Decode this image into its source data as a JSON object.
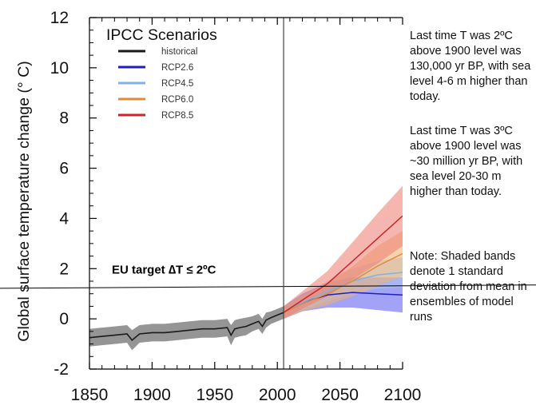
{
  "chart_data": {
    "type": "line",
    "title": "IPCC Scenarios",
    "ylabel": "Global surface temperature change (° C)",
    "xlabel": "",
    "xlim": [
      1850,
      2100
    ],
    "ylim": [
      -2,
      12
    ],
    "x_ticks": [
      "1850",
      "1900",
      "1950",
      "2000",
      "2050",
      "2100"
    ],
    "y_ticks": [
      "-2",
      "0",
      "2",
      "4",
      "6",
      "8",
      "10",
      "12"
    ],
    "grid": false,
    "legend_position": "top-left",
    "series": [
      {
        "name": "historical",
        "color": "#1a1a1a",
        "band_color": "#8a8a8a",
        "x": [
          1850,
          1860,
          1870,
          1880,
          1884,
          1890,
          1900,
          1910,
          1920,
          1930,
          1940,
          1950,
          1960,
          1963,
          1966,
          1970,
          1975,
          1980,
          1985,
          1988,
          1991,
          1995,
          2000,
          2005
        ],
        "y": [
          -0.75,
          -0.7,
          -0.65,
          -0.6,
          -0.85,
          -0.6,
          -0.55,
          -0.55,
          -0.5,
          -0.45,
          -0.4,
          -0.4,
          -0.35,
          -0.65,
          -0.4,
          -0.35,
          -0.3,
          -0.2,
          -0.1,
          -0.3,
          -0.05,
          0.05,
          0.15,
          0.25
        ],
        "sd": [
          0.35,
          0.35,
          0.35,
          0.35,
          0.4,
          0.35,
          0.35,
          0.35,
          0.35,
          0.35,
          0.35,
          0.35,
          0.35,
          0.4,
          0.35,
          0.35,
          0.35,
          0.3,
          0.3,
          0.3,
          0.3,
          0.25,
          0.25,
          0.25
        ]
      },
      {
        "name": "RCP2.6",
        "color": "#1f1fbf",
        "band_color": "#5555ee",
        "x": [
          2005,
          2020,
          2040,
          2060,
          2080,
          2100
        ],
        "y": [
          0.25,
          0.65,
          0.95,
          1.05,
          1.0,
          0.95
        ],
        "sd": [
          0.25,
          0.35,
          0.5,
          0.6,
          0.65,
          0.7
        ]
      },
      {
        "name": "RCP4.5",
        "color": "#7fb2e6",
        "band_color": "#a9c9ee",
        "x": [
          2005,
          2020,
          2040,
          2060,
          2080,
          2100
        ],
        "y": [
          0.25,
          0.65,
          1.1,
          1.5,
          1.75,
          1.85
        ],
        "sd": [
          0.25,
          0.3,
          0.4,
          0.5,
          0.55,
          0.6
        ]
      },
      {
        "name": "RCP6.0",
        "color": "#e08a3c",
        "band_color": "#f0b070",
        "x": [
          2005,
          2020,
          2040,
          2060,
          2080,
          2100
        ],
        "y": [
          0.25,
          0.6,
          1.0,
          1.5,
          2.1,
          2.6
        ],
        "sd": [
          0.25,
          0.3,
          0.45,
          0.6,
          0.8,
          0.9
        ]
      },
      {
        "name": "RCP8.5",
        "color": "#c8262a",
        "band_color": "#ee7a70",
        "x": [
          2005,
          2020,
          2040,
          2060,
          2080,
          2100
        ],
        "y": [
          0.25,
          0.75,
          1.4,
          2.3,
          3.2,
          4.1
        ],
        "sd": [
          0.25,
          0.35,
          0.5,
          0.75,
          1.0,
          1.2
        ]
      }
    ],
    "reference_lines": [
      {
        "label": "EU target ∆T ≤ 2ºC",
        "x_start": 1850,
        "x_end": 2100,
        "y_start": 1.25,
        "y_end": 1.35,
        "color": "#000000"
      },
      {
        "label": "",
        "orientation": "vertical",
        "x": 2005,
        "color": "#444444"
      }
    ]
  },
  "notes": [
    "Last time T was 2ºC above 1900 level was 130,000 yr BP, with sea level 4-6 m higher than today.",
    "Last time T was 3ºC above 1900 level was ~30 million yr BP, with sea level 20-30 m higher than today.",
    "Note: Shaded bands denote 1 standard deviation from mean in ensembles of model runs"
  ]
}
